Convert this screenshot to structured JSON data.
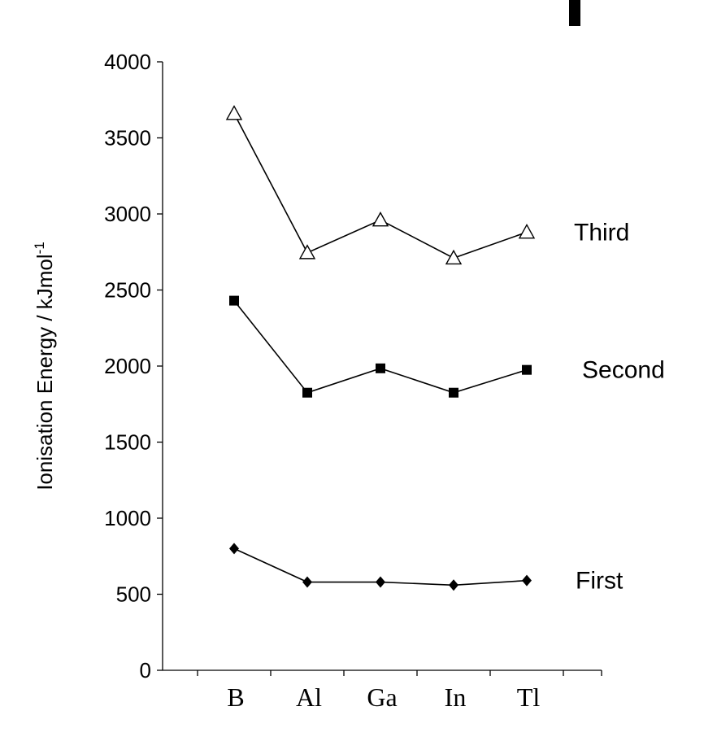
{
  "chart_data": {
    "type": "line",
    "categories": [
      "B",
      "Al",
      "Ga",
      "In",
      "Tl"
    ],
    "ylabel": "Ionisation Energy / kJmol",
    "ylabel_superscript": "-1",
    "ylim": [
      0,
      4000
    ],
    "yticks": [
      "0",
      "500",
      "1000",
      "1500",
      "2000",
      "2500",
      "3000",
      "3500",
      "4000"
    ],
    "grid": false,
    "series": [
      {
        "name": "Third",
        "marker": "open-triangle",
        "values": [
          3660,
          2745,
          2960,
          2710,
          2880
        ]
      },
      {
        "name": "Second",
        "marker": "filled-square",
        "values": [
          2430,
          1825,
          1985,
          1825,
          1975
        ]
      },
      {
        "name": "First",
        "marker": "filled-diamond",
        "values": [
          800,
          580,
          580,
          560,
          590
        ]
      }
    ]
  }
}
